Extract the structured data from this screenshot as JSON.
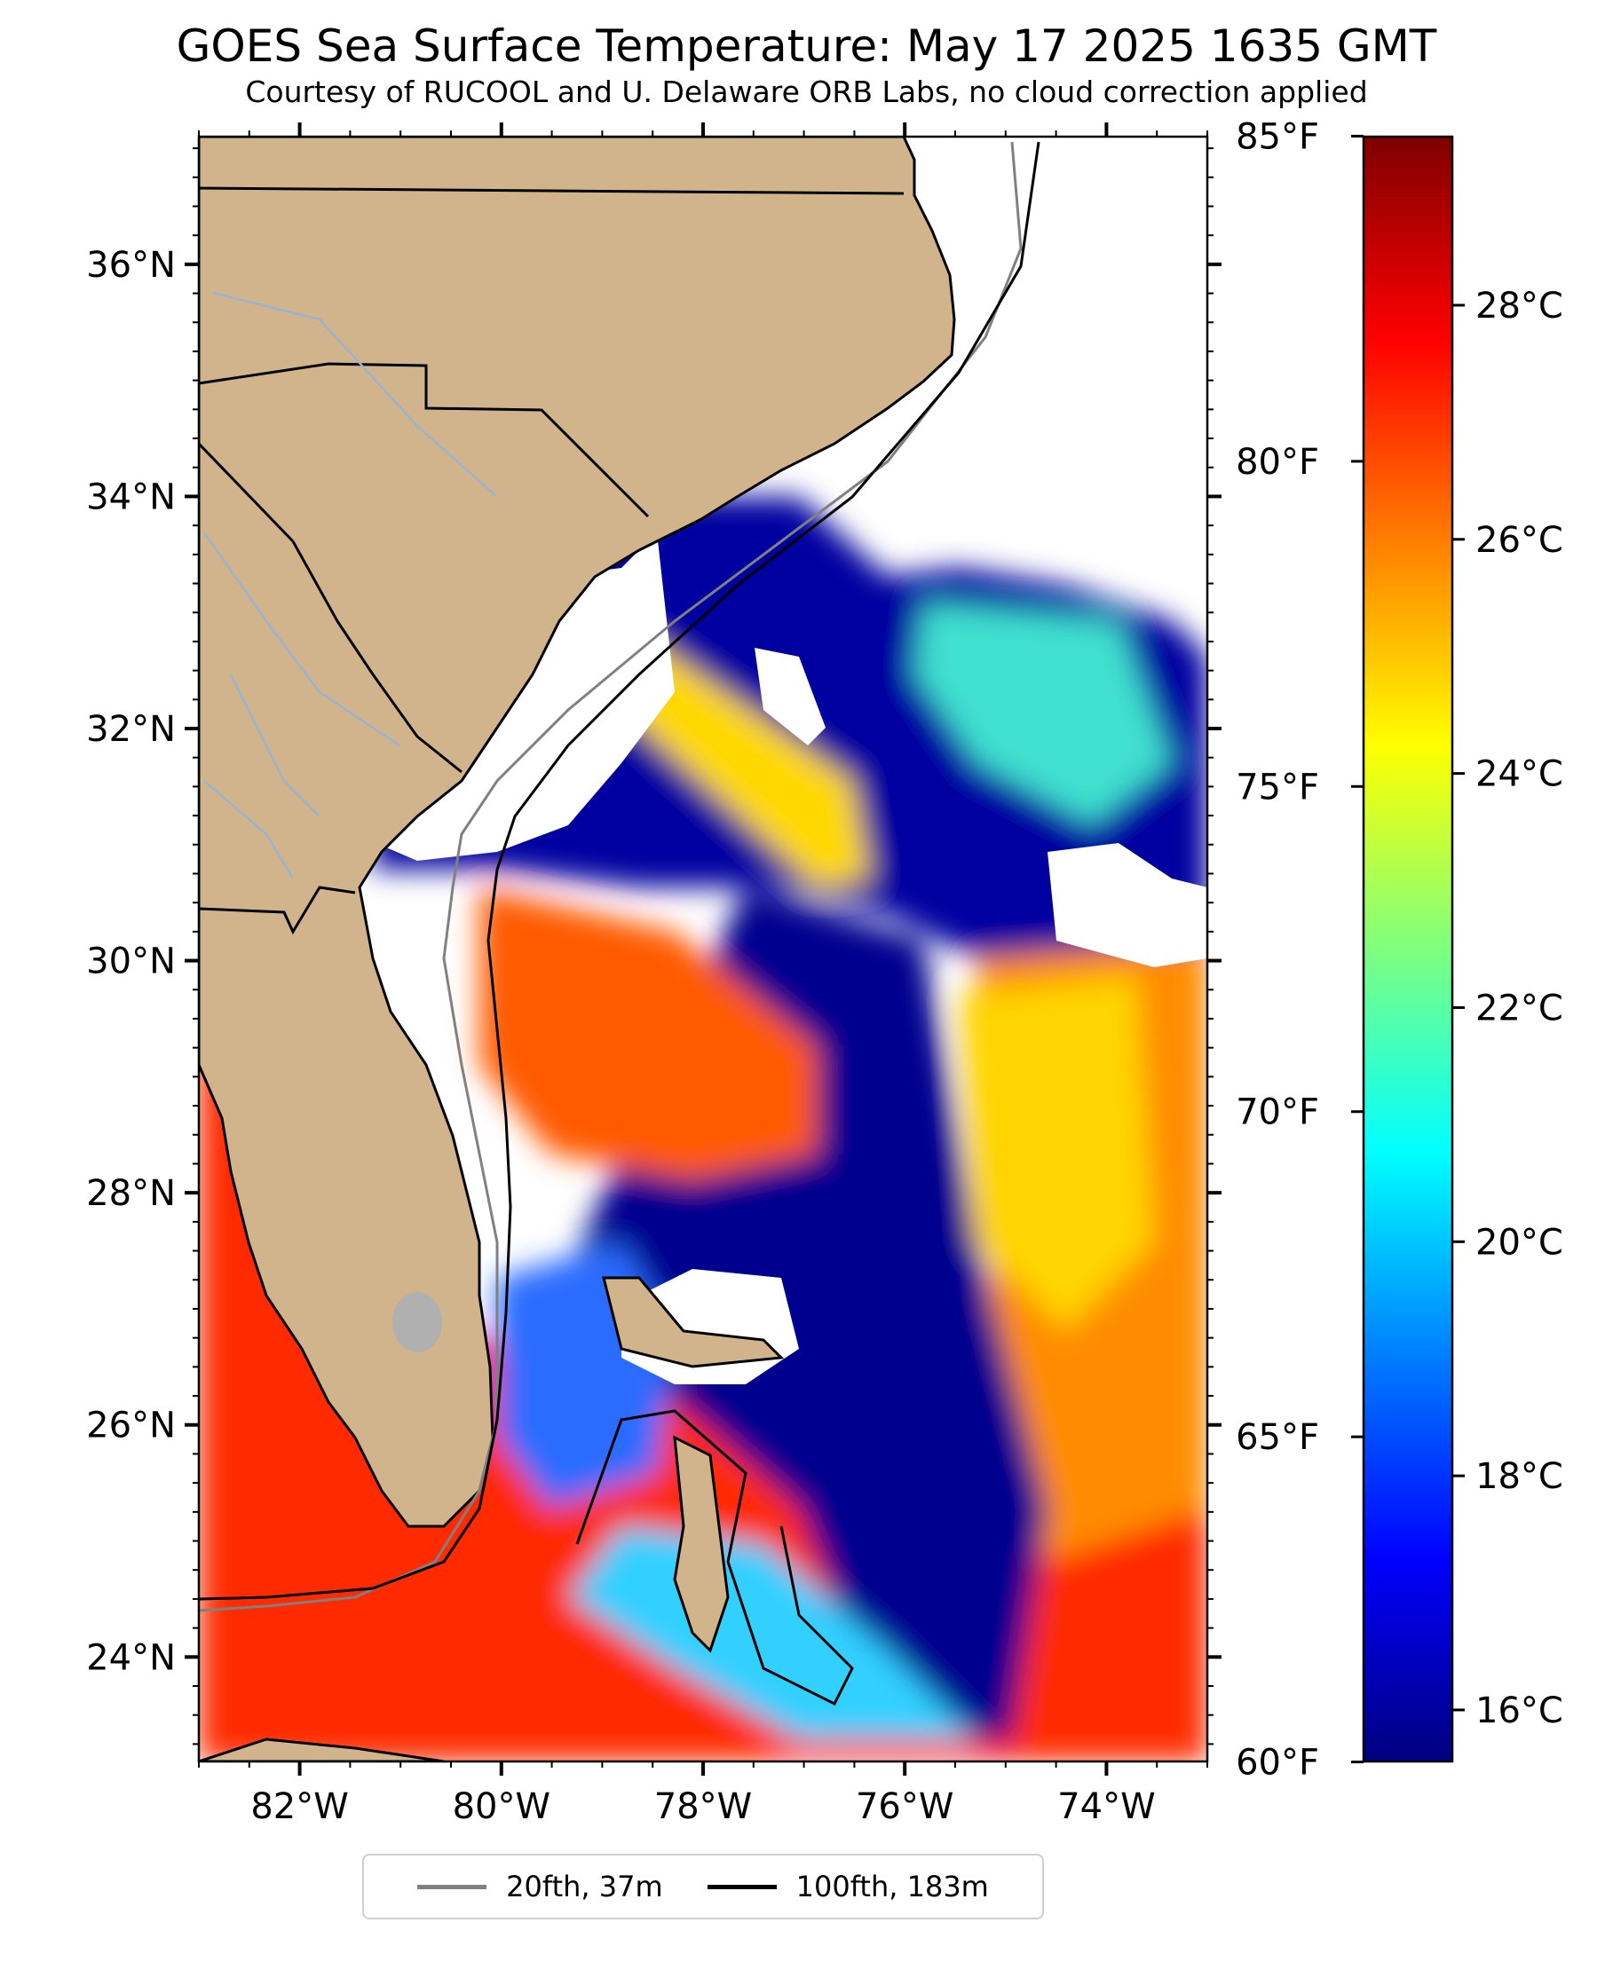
{
  "header": {
    "title": "GOES Sea Surface Temperature: May 17 2025 1635 GMT",
    "subtitle": "Courtesy of RUCOOL and U. Delaware ORB Labs, no cloud correction applied"
  },
  "map": {
    "extent": {
      "lon_min": -83.0,
      "lon_max": -73.0,
      "lat_min": 23.1,
      "lat_max": 37.1
    },
    "land_color": "#d2b48c",
    "cloud_color": "#ffffff",
    "lat_ticks": [
      {
        "lat": 36,
        "label": "36°N"
      },
      {
        "lat": 34,
        "label": "34°N"
      },
      {
        "lat": 32,
        "label": "32°N"
      },
      {
        "lat": 30,
        "label": "30°N"
      },
      {
        "lat": 28,
        "label": "28°N"
      },
      {
        "lat": 26,
        "label": "26°N"
      },
      {
        "lat": 24,
        "label": "24°N"
      }
    ],
    "lon_ticks": [
      {
        "lon": -82,
        "label": "82°W"
      },
      {
        "lon": -80,
        "label": "80°W"
      },
      {
        "lon": -78,
        "label": "78°W"
      },
      {
        "lon": -76,
        "label": "76°W"
      },
      {
        "lon": -74,
        "label": "74°W"
      }
    ]
  },
  "colorbar": {
    "celsius_range": [
      15.56,
      29.44
    ],
    "stops": [
      "#00007f",
      "#0000ff",
      "#007fff",
      "#00ffff",
      "#7fff7f",
      "#ffff00",
      "#ff7f00",
      "#ff0000",
      "#7f0000"
    ],
    "celsius_ticks": [
      {
        "value": 16,
        "label": "16°C"
      },
      {
        "value": 18,
        "label": "18°C"
      },
      {
        "value": 20,
        "label": "20°C"
      },
      {
        "value": 22,
        "label": "22°C"
      },
      {
        "value": 24,
        "label": "24°C"
      },
      {
        "value": 26,
        "label": "26°C"
      },
      {
        "value": 28,
        "label": "28°C"
      }
    ],
    "fahrenheit_ticks": [
      {
        "value": 60,
        "label": "60°F"
      },
      {
        "value": 65,
        "label": "65°F"
      },
      {
        "value": 70,
        "label": "70°F"
      },
      {
        "value": 75,
        "label": "75°F"
      },
      {
        "value": 80,
        "label": "80°F"
      },
      {
        "value": 85,
        "label": "85°F"
      }
    ]
  },
  "legend": {
    "items": [
      {
        "label": "20fth, 37m",
        "color": "#808080"
      },
      {
        "label": "100fth, 183m",
        "color": "#000000"
      }
    ]
  }
}
